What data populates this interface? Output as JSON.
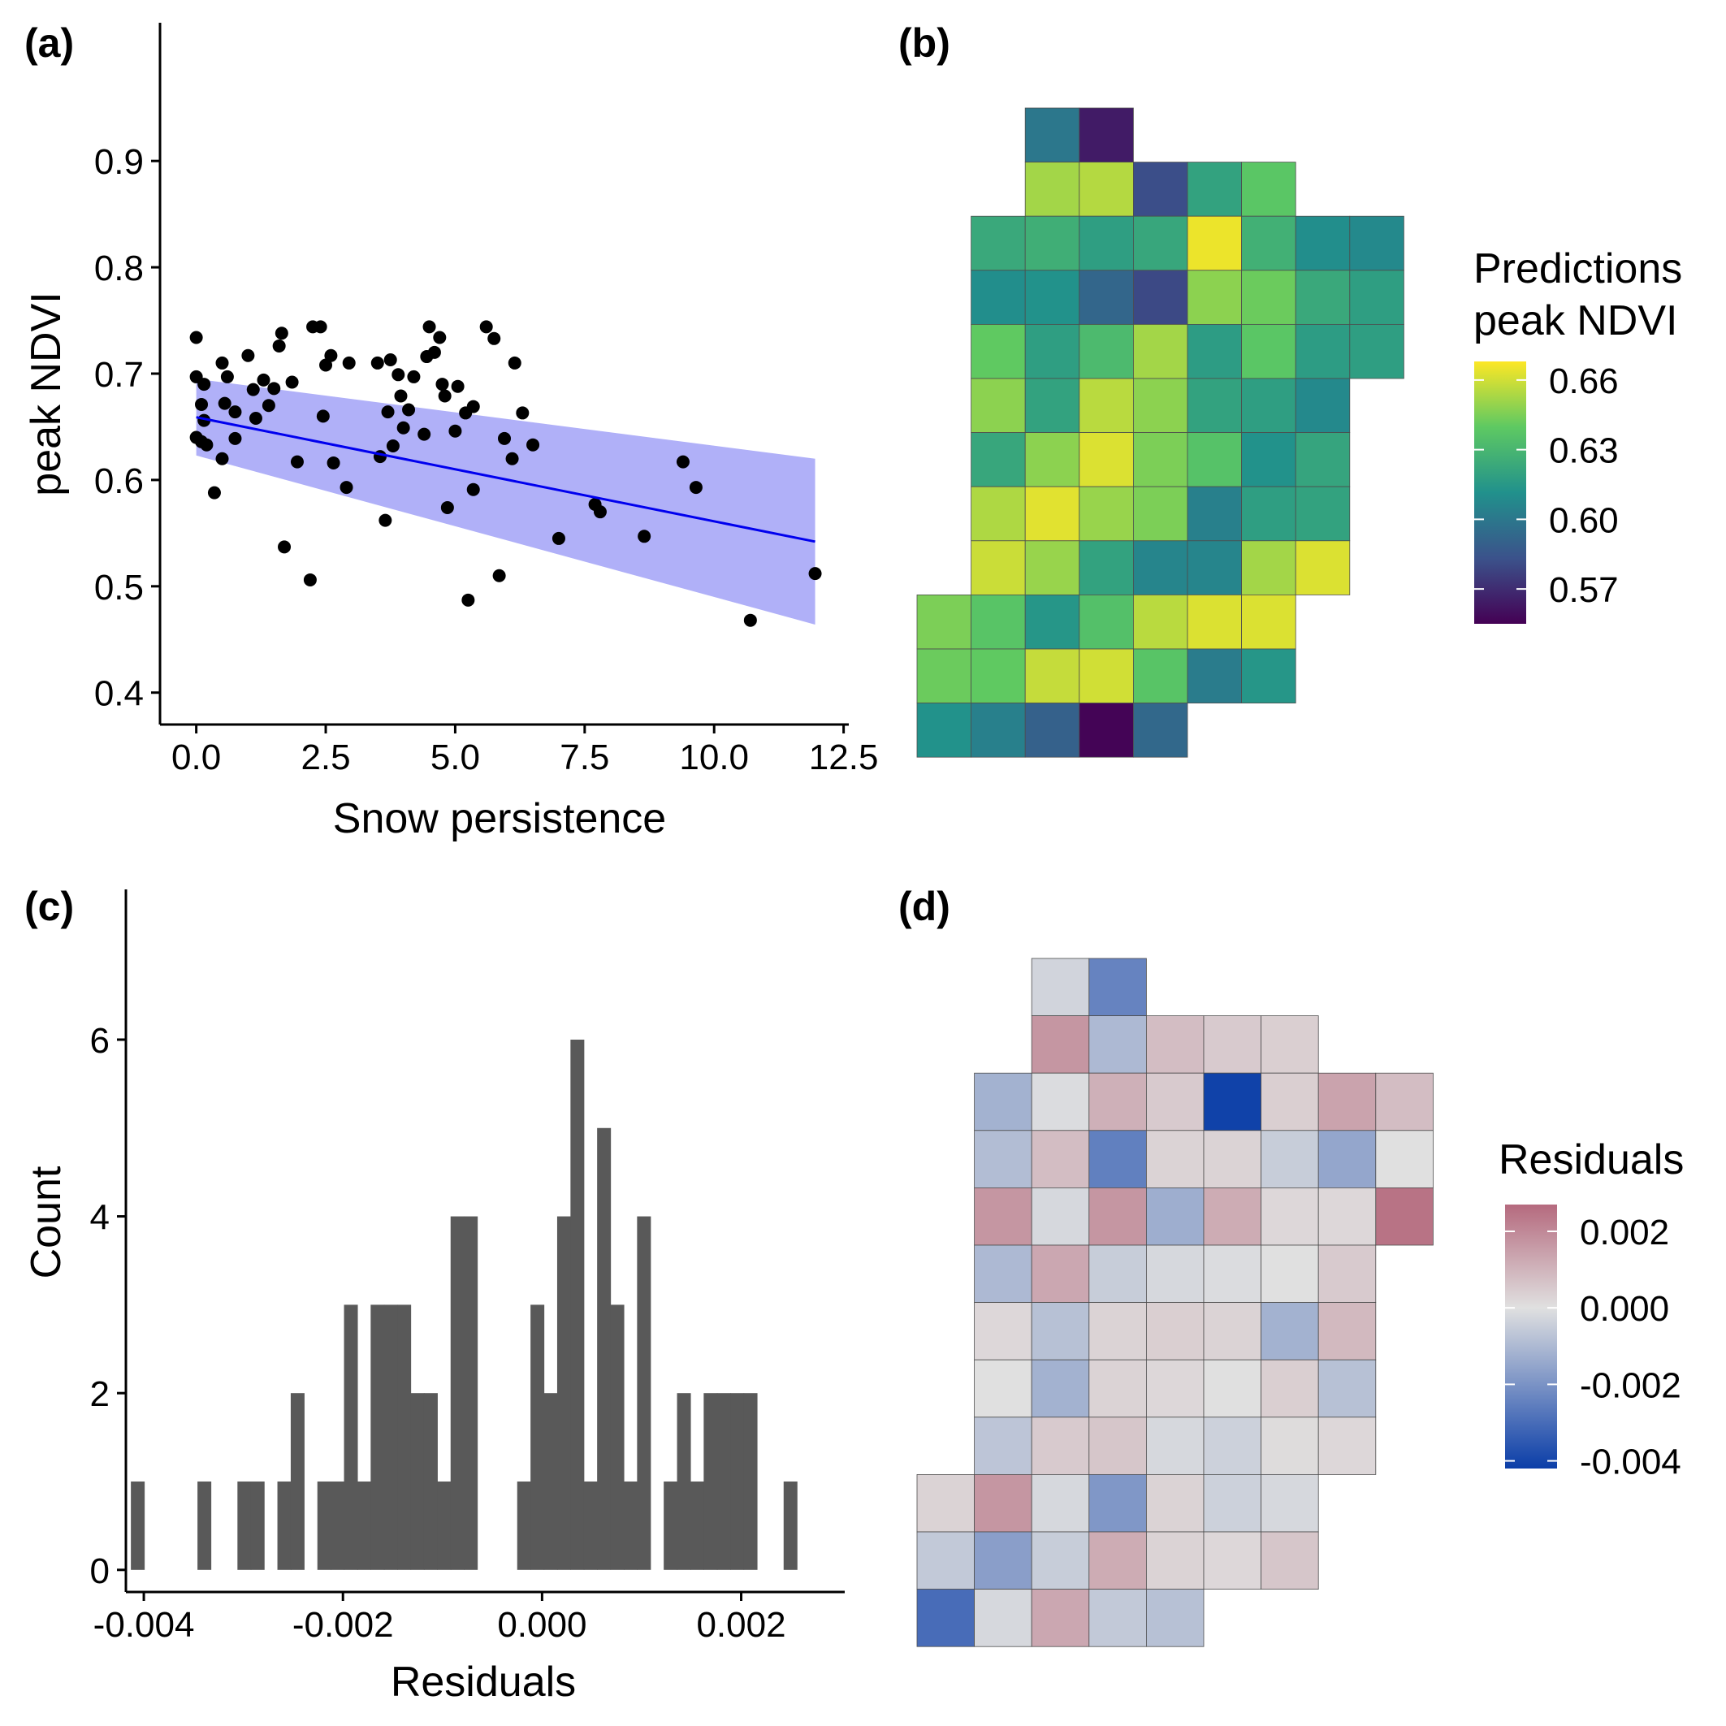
{
  "figure": {
    "panel_labels": [
      "(a)",
      "(b)",
      "(c)",
      "(d)"
    ]
  },
  "chart_data": [
    {
      "panel": "(a)",
      "type": "scatter",
      "xlabel": "Snow persistence",
      "ylabel": "peak NDVI",
      "xlim": [
        -0.7,
        12.6
      ],
      "ylim": [
        0.37,
        1.03
      ],
      "xticks": [
        0.0,
        2.5,
        5.0,
        7.5,
        10.0,
        12.5
      ],
      "xtick_labels": [
        "0.0",
        "2.5",
        "5.0",
        "7.5",
        "10.0",
        "12.5"
      ],
      "yticks": [
        0.4,
        0.5,
        0.6,
        0.7,
        0.8,
        0.9
      ],
      "ytick_labels": [
        "0.4",
        "0.5",
        "0.6",
        "0.7",
        "0.8",
        "0.9"
      ],
      "grid": false,
      "point_color": "#000000",
      "fit_line_color": "#0000ee",
      "ribbon_color": "#b0b0f8",
      "fit_line": {
        "x": [
          0.0,
          11.95
        ],
        "y": [
          0.659,
          0.542
        ]
      },
      "ribbon": {
        "x": [
          0.0,
          11.95
        ],
        "upper": [
          0.695,
          0.62
        ],
        "lower": [
          0.623,
          0.464
        ]
      },
      "points": [
        [
          0.0,
          0.64
        ],
        [
          0.0,
          0.697
        ],
        [
          0.0,
          0.734
        ],
        [
          0.1,
          0.636
        ],
        [
          0.1,
          0.671
        ],
        [
          0.15,
          0.656
        ],
        [
          0.15,
          0.69
        ],
        [
          0.2,
          0.633
        ],
        [
          0.35,
          0.588
        ],
        [
          0.5,
          0.62
        ],
        [
          0.5,
          0.71
        ],
        [
          0.55,
          0.672
        ],
        [
          0.6,
          0.697
        ],
        [
          0.75,
          0.639
        ],
        [
          0.75,
          0.664
        ],
        [
          1.0,
          0.717
        ],
        [
          1.1,
          0.685
        ],
        [
          1.15,
          0.658
        ],
        [
          1.3,
          0.694
        ],
        [
          1.4,
          0.67
        ],
        [
          1.5,
          0.686
        ],
        [
          1.6,
          0.726
        ],
        [
          1.65,
          0.738
        ],
        [
          1.7,
          0.537
        ],
        [
          1.85,
          0.692
        ],
        [
          1.95,
          0.617
        ],
        [
          2.2,
          0.506
        ],
        [
          2.25,
          0.744
        ],
        [
          2.4,
          0.744
        ],
        [
          2.45,
          0.66
        ],
        [
          2.5,
          0.708
        ],
        [
          2.6,
          0.717
        ],
        [
          2.65,
          0.616
        ],
        [
          2.9,
          0.593
        ],
        [
          2.95,
          0.71
        ],
        [
          3.5,
          0.71
        ],
        [
          3.55,
          0.622
        ],
        [
          3.65,
          0.562
        ],
        [
          3.7,
          0.664
        ],
        [
          3.75,
          0.713
        ],
        [
          3.8,
          0.632
        ],
        [
          3.9,
          0.699
        ],
        [
          3.95,
          0.679
        ],
        [
          4.0,
          0.649
        ],
        [
          4.1,
          0.666
        ],
        [
          4.2,
          0.697
        ],
        [
          4.4,
          0.643
        ],
        [
          4.45,
          0.716
        ],
        [
          4.5,
          0.744
        ],
        [
          4.6,
          0.72
        ],
        [
          4.7,
          0.734
        ],
        [
          4.75,
          0.69
        ],
        [
          4.8,
          0.679
        ],
        [
          4.85,
          0.574
        ],
        [
          5.0,
          0.646
        ],
        [
          5.05,
          0.688
        ],
        [
          5.2,
          0.663
        ],
        [
          5.25,
          0.487
        ],
        [
          5.35,
          0.669
        ],
        [
          5.35,
          0.591
        ],
        [
          5.6,
          0.744
        ],
        [
          5.75,
          0.733
        ],
        [
          5.85,
          0.51
        ],
        [
          5.95,
          0.639
        ],
        [
          6.1,
          0.62
        ],
        [
          6.15,
          0.71
        ],
        [
          6.3,
          0.663
        ],
        [
          6.5,
          0.633
        ],
        [
          7.0,
          0.545
        ],
        [
          7.7,
          0.577
        ],
        [
          7.8,
          0.57
        ],
        [
          8.65,
          0.547
        ],
        [
          9.4,
          0.617
        ],
        [
          9.65,
          0.593
        ],
        [
          10.7,
          0.468
        ],
        [
          11.95,
          0.512
        ]
      ]
    },
    {
      "panel": "(b)",
      "type": "heatmap",
      "legend_title_lines": [
        "Predictions",
        "peak NDVI"
      ],
      "colorbar_ticks": [
        0.57,
        0.6,
        0.63,
        0.66
      ],
      "colorbar_tick_labels": [
        "0.57",
        "0.60",
        "0.63",
        "0.66"
      ],
      "colorbar_range": [
        0.555,
        0.668
      ],
      "palette": "viridis",
      "palette_stops": [
        "#440154",
        "#3b528b",
        "#21918c",
        "#5ec962",
        "#fde725"
      ],
      "rows": [
        [
          null,
          null,
          0.6,
          0.564
        ],
        [
          null,
          null,
          0.652,
          0.655,
          0.582,
          0.62,
          0.638
        ],
        [
          null,
          0.623,
          0.626,
          0.618,
          0.622,
          0.665,
          0.627,
          0.61,
          0.608
        ],
        [
          null,
          0.61,
          0.612,
          0.592,
          0.58,
          0.648,
          0.642,
          0.623,
          0.618
        ],
        [
          null,
          0.64,
          0.618,
          0.632,
          0.652,
          0.617,
          0.638,
          0.617,
          0.618
        ],
        [
          null,
          0.648,
          0.62,
          0.656,
          0.648,
          0.62,
          0.618,
          0.608
        ],
        [
          null,
          0.622,
          0.648,
          0.662,
          0.645,
          0.636,
          0.612,
          0.621
        ],
        [
          null,
          0.654,
          0.663,
          0.65,
          0.645,
          0.604,
          0.618,
          0.62
        ],
        [
          null,
          0.659,
          0.65,
          0.62,
          0.606,
          0.606,
          0.652,
          0.662
        ],
        [
          0.645,
          0.637,
          0.614,
          0.635,
          0.656,
          0.662,
          0.662
        ],
        [
          0.642,
          0.64,
          0.658,
          0.66,
          0.637,
          0.602,
          0.614
        ],
        [
          0.612,
          0.604,
          0.59,
          0.556,
          0.593
        ]
      ]
    },
    {
      "panel": "(c)",
      "type": "bar",
      "subtype": "histogram",
      "xlabel": "Residuals",
      "ylabel": "Count",
      "xlim": [
        -0.00418,
        0.00304
      ],
      "ylim": [
        -0.25,
        7.7
      ],
      "xticks": [
        -0.004,
        -0.002,
        0.0,
        0.002
      ],
      "xtick_labels": [
        "-0.004",
        "-0.002",
        "0.000",
        "0.002"
      ],
      "yticks": [
        0,
        2,
        4,
        6
      ],
      "ytick_labels": [
        "0",
        "2",
        "4",
        "6"
      ],
      "grid": false,
      "bar_color": "#595959",
      "bin_start": -0.00413,
      "bin_width": 0.0001338,
      "counts": [
        1,
        0,
        0,
        0,
        0,
        1,
        0,
        0,
        1,
        1,
        0,
        1,
        2,
        0,
        1,
        1,
        3,
        1,
        3,
        3,
        3,
        2,
        2,
        1,
        4,
        4,
        0,
        0,
        0,
        1,
        3,
        2,
        4,
        6,
        1,
        5,
        3,
        1,
        4,
        0,
        1,
        2,
        1,
        2,
        2,
        2,
        2,
        0,
        0,
        1
      ]
    },
    {
      "panel": "(d)",
      "type": "heatmap",
      "legend_title": "Residuals",
      "colorbar_ticks": [
        -0.004,
        -0.002,
        0.0,
        0.002
      ],
      "colorbar_tick_labels": [
        "-0.004",
        "-0.002",
        "0.000",
        "0.002"
      ],
      "colorbar_range": [
        -0.0042,
        0.0027
      ],
      "palette": "diverging",
      "palette_low": "#0b3ea8",
      "palette_mid": "#e0e0e0",
      "palette_high": "#b56a7e",
      "rows": [
        [
          null,
          null,
          -0.0003,
          -0.0024
        ],
        [
          null,
          null,
          0.0017,
          -0.001,
          0.0008,
          0.0005,
          0.0004
        ],
        [
          null,
          -0.0012,
          -0.0001,
          0.0011,
          0.0005,
          -0.0041,
          0.0004,
          0.0014,
          0.0008
        ],
        [
          null,
          -0.0009,
          0.0008,
          -0.0025,
          0.0003,
          0.0003,
          -0.0005,
          -0.0015,
          0.0
        ],
        [
          null,
          0.0017,
          -0.0002,
          0.0017,
          -0.0013,
          0.0012,
          0.0002,
          0.0002,
          0.0025
        ],
        [
          null,
          -0.001,
          0.0013,
          -0.0005,
          -0.0002,
          -0.0001,
          0.0,
          0.0005
        ],
        [
          null,
          0.0002,
          -0.0008,
          0.0003,
          0.0004,
          0.0003,
          -0.0012,
          0.0009
        ],
        [
          null,
          0.0,
          -0.0012,
          0.0003,
          0.0002,
          0.0,
          0.0004,
          -0.0008
        ],
        [
          null,
          -0.0007,
          0.0005,
          0.0006,
          -0.0002,
          -0.0004,
          0.0001,
          0.0002
        ],
        [
          0.0003,
          0.0017,
          -0.0002,
          -0.0019,
          0.0003,
          -0.0004,
          -0.0002
        ],
        [
          -0.0006,
          -0.0017,
          -0.0005,
          0.0012,
          0.0003,
          0.0002,
          0.0006
        ],
        [
          -0.003,
          -0.0002,
          0.0013,
          -0.0006,
          -0.0008
        ]
      ]
    }
  ]
}
